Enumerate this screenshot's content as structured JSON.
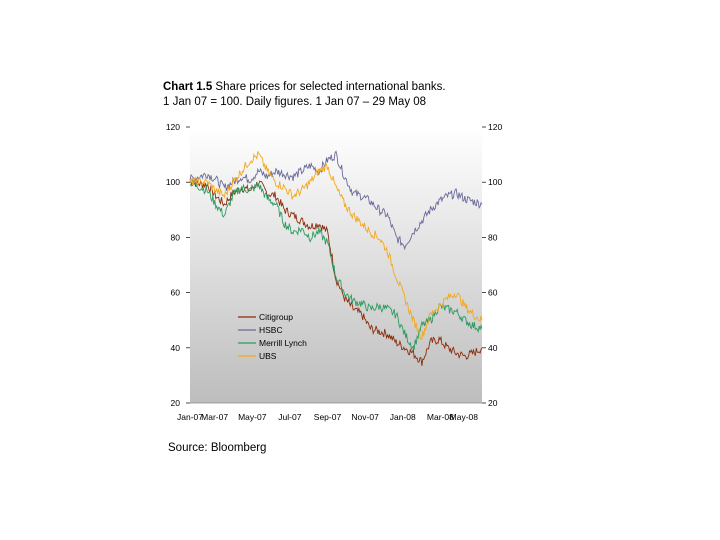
{
  "title": {
    "label": "Chart 1.5",
    "text": "Share prices for selected international banks.",
    "subtitle": "1 Jan 07 = 100. Daily figures. 1 Jan 07 – 29 May 08"
  },
  "source": "Source: Bloomberg",
  "chart_data": {
    "type": "line",
    "title": "Share prices for selected international banks.",
    "subtitle": "1 Jan 07 = 100. Daily figures. 1 Jan 07 – 29 May 08",
    "xlabel": "",
    "ylabel": "",
    "x_range": [
      0,
      17
    ],
    "ylim": [
      20,
      120
    ],
    "y_ticks": [
      "120",
      "100",
      "80",
      "60",
      "40",
      "20"
    ],
    "y_ticks_right": [
      "120",
      "100",
      "80",
      "60",
      "40",
      "20"
    ],
    "x_ticks": [
      "Jan-07",
      "Mar-07",
      "May-07",
      "Jul-07",
      "Sep-07",
      "Nov-07",
      "Jan-08",
      "Mar-08",
      "May-08"
    ],
    "grid": false,
    "legend_position": "center-left",
    "series": [
      {
        "name": "Citigroup",
        "color": "#8B2E0E",
        "x": [
          0,
          1,
          1.5,
          2,
          2.5,
          3,
          3.5,
          4,
          4.5,
          5,
          5.5,
          6,
          6.5,
          7,
          7.5,
          8,
          8.5,
          9,
          9.5,
          10,
          10.5,
          11,
          11.5,
          12,
          12.5,
          13,
          13.5,
          14,
          14.5,
          15,
          15.5,
          16,
          16.5,
          17
        ],
        "values": [
          100,
          99,
          95,
          92,
          96,
          98,
          97,
          100,
          96,
          95,
          90,
          88,
          86,
          84,
          85,
          82,
          65,
          58,
          54,
          52,
          47,
          46,
          45,
          42,
          40,
          38,
          35,
          42,
          43,
          40,
          38,
          37,
          38,
          40
        ]
      },
      {
        "name": "HSBC",
        "color": "#6B6B9B",
        "x": [
          0,
          1,
          1.5,
          2,
          2.5,
          3,
          3.5,
          4,
          4.5,
          5,
          5.5,
          6,
          6.5,
          7,
          7.5,
          8,
          8.5,
          9,
          9.5,
          10,
          10.5,
          11,
          11.5,
          12,
          12.5,
          13,
          13.5,
          14,
          14.5,
          15,
          15.5,
          16,
          16.5,
          17
        ],
        "values": [
          101,
          103,
          101,
          98,
          100,
          102,
          101,
          104,
          102,
          104,
          103,
          102,
          104,
          106,
          104,
          108,
          110,
          102,
          96,
          95,
          93,
          90,
          88,
          80,
          77,
          82,
          86,
          90,
          93,
          95,
          96,
          94,
          93,
          92
        ]
      },
      {
        "name": "Merrill Lynch",
        "color": "#2E9B5E",
        "x": [
          0,
          1,
          1.5,
          2,
          2.5,
          3,
          3.5,
          4,
          4.5,
          5,
          5.5,
          6,
          6.5,
          7,
          7.5,
          8,
          8.5,
          9,
          9.5,
          10,
          10.5,
          11,
          11.5,
          12,
          12.5,
          13,
          13.5,
          14,
          14.5,
          15,
          15.5,
          16,
          16.5,
          17
        ],
        "values": [
          100,
          97,
          92,
          88,
          95,
          98,
          97,
          99,
          94,
          92,
          85,
          82,
          83,
          80,
          82,
          78,
          66,
          60,
          57,
          56,
          54,
          55,
          54,
          52,
          45,
          40,
          48,
          50,
          55,
          54,
          53,
          50,
          48,
          47
        ]
      },
      {
        "name": "UBS",
        "color": "#F5A81C",
        "x": [
          0,
          1,
          1.5,
          2,
          2.5,
          3,
          3.5,
          4,
          4.5,
          5,
          5.5,
          6,
          6.5,
          7,
          7.5,
          8,
          8.5,
          9,
          9.5,
          10,
          10.5,
          11,
          11.5,
          12,
          12.5,
          13,
          13.5,
          14,
          14.5,
          15,
          15.5,
          16,
          16.5,
          17
        ],
        "values": [
          100,
          100,
          97,
          95,
          100,
          104,
          108,
          110,
          104,
          100,
          98,
          95,
          97,
          100,
          104,
          106,
          98,
          92,
          88,
          85,
          82,
          80,
          75,
          66,
          58,
          50,
          44,
          52,
          55,
          58,
          60,
          55,
          52,
          50
        ]
      }
    ]
  }
}
